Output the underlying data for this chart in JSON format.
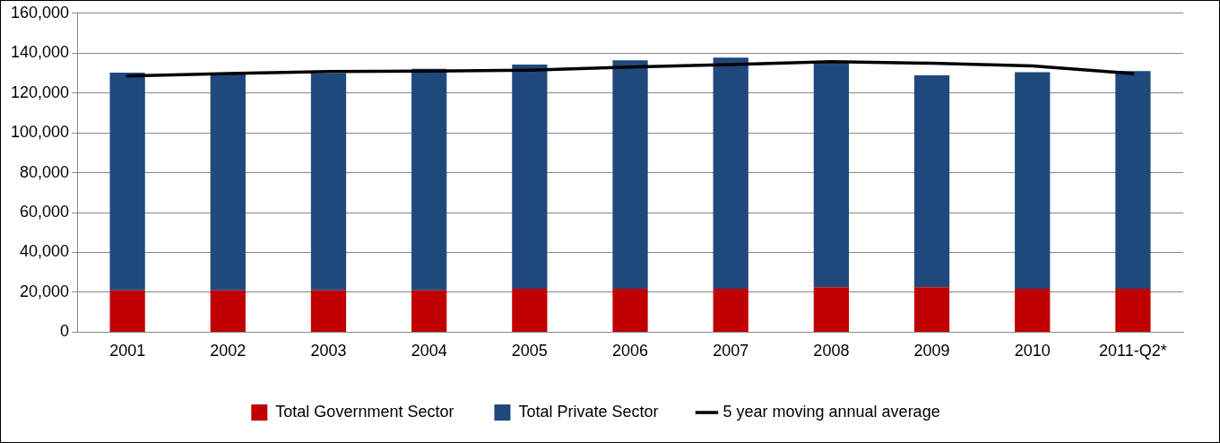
{
  "chart_data": {
    "type": "bar",
    "stacked": true,
    "categories": [
      "2001",
      "2002",
      "2003",
      "2004",
      "2005",
      "2006",
      "2007",
      "2008",
      "2009",
      "2010",
      "2011-Q2*"
    ],
    "series": [
      {
        "name": "Total Government Sector",
        "color": "#c00000",
        "values": [
          21000,
          21000,
          21000,
          21000,
          21800,
          21800,
          21800,
          22600,
          22600,
          21800,
          21800
        ]
      },
      {
        "name": "Total Private Sector",
        "color": "#1f497d",
        "values": [
          109200,
          108600,
          109000,
          111100,
          112500,
          114600,
          115900,
          113100,
          106300,
          108600,
          109200
        ]
      },
      {
        "name": "5 year moving annual average",
        "type": "line",
        "color": "#000000",
        "values": [
          128500,
          129800,
          130800,
          131000,
          131500,
          133000,
          134300,
          135700,
          134900,
          133600,
          129800
        ]
      }
    ],
    "ylim": [
      0,
      160000
    ],
    "yticks": [
      0,
      {
        "value": 20000,
        "label": "20,000"
      },
      {
        "value": 40000,
        "label": "40,000"
      },
      {
        "value": 60000,
        "label": "60,000"
      },
      {
        "value": 80000,
        "label": "80,000"
      },
      {
        "value": 100000,
        "label": "100,000"
      },
      {
        "value": 120000,
        "label": "120,000"
      },
      {
        "value": 140000,
        "label": "140,000"
      },
      {
        "value": 160000,
        "label": "160,000"
      }
    ],
    "grid": "y",
    "legend": "bottom",
    "marker": "none"
  }
}
